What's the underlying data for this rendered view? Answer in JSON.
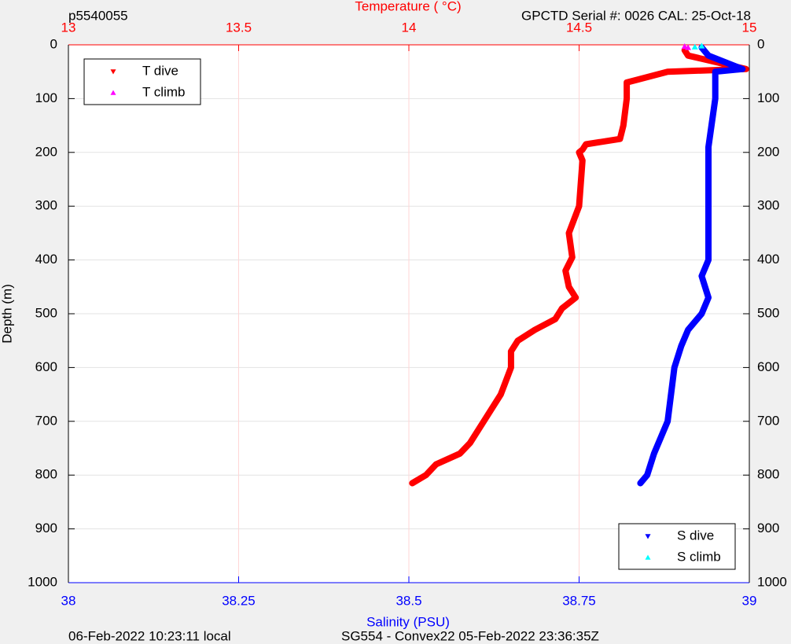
{
  "chart_data": {
    "type": "profile",
    "title": "p5540055",
    "subtitle": "GPCTD Serial #: 0026 CAL: 25-Oct-18",
    "x2label": "Temperature (    °C)",
    "xlabel": "Salinity (PSU)",
    "ylabel": "Depth (m)",
    "footer_left": "06-Feb-2022 10:23:11 local",
    "footer_center": "SG554 - Convex22 05-Feb-2022 23:36:35Z",
    "ylim": [
      1000,
      0
    ],
    "yticks": [
      0,
      100,
      200,
      300,
      400,
      500,
      600,
      700,
      800,
      900,
      1000
    ],
    "xlim": [
      38,
      39
    ],
    "xticks": [
      38,
      38.25,
      38.5,
      38.75,
      39
    ],
    "x2lim": [
      13,
      15
    ],
    "x2ticks": [
      13,
      13.5,
      14,
      14.5,
      15
    ],
    "grid": true,
    "x2_legend": "upper left",
    "x_legend": "lower right",
    "series": [
      {
        "name": "T dive",
        "color": "#ff0000",
        "axis": "x2",
        "marker": "down",
        "x": [
          14.81,
          14.82,
          14.99,
          14.76,
          14.67,
          14.64,
          14.64,
          14.63,
          14.62,
          14.52,
          14.51,
          14.5,
          14.51,
          14.5,
          14.47,
          14.48,
          14.46,
          14.47,
          14.49,
          14.45,
          14.43,
          14.37,
          14.32,
          14.3,
          14.3,
          14.27,
          14.22,
          14.18,
          14.15,
          14.08,
          14.05,
          14.01
        ],
        "values": [
          10,
          20,
          45,
          50,
          65,
          70,
          100,
          150,
          175,
          185,
          195,
          200,
          215,
          300,
          350,
          395,
          420,
          450,
          470,
          490,
          510,
          530,
          550,
          570,
          600,
          650,
          700,
          740,
          760,
          780,
          800,
          815
        ]
      },
      {
        "name": "T climb",
        "color": "#ff00ff",
        "axis": "x2",
        "marker": "up",
        "x": [
          14.81,
          14.82
        ],
        "values": [
          3,
          5
        ]
      },
      {
        "name": "S dive",
        "color": "#0000ff",
        "axis": "x",
        "marker": "down",
        "x": [
          38.93,
          38.94,
          38.99,
          38.95,
          38.95,
          38.94,
          38.94,
          38.94,
          38.94,
          38.93,
          38.94,
          38.93,
          38.91,
          38.9,
          38.89,
          38.88,
          38.86,
          38.85,
          38.84
        ],
        "values": [
          5,
          20,
          45,
          50,
          100,
          190,
          200,
          300,
          400,
          430,
          470,
          500,
          530,
          560,
          600,
          700,
          760,
          800,
          815
        ]
      },
      {
        "name": "S climb",
        "color": "#00ffff",
        "axis": "x",
        "marker": "up",
        "x": [
          38.93,
          38.92
        ],
        "values": [
          2,
          4
        ]
      }
    ]
  }
}
